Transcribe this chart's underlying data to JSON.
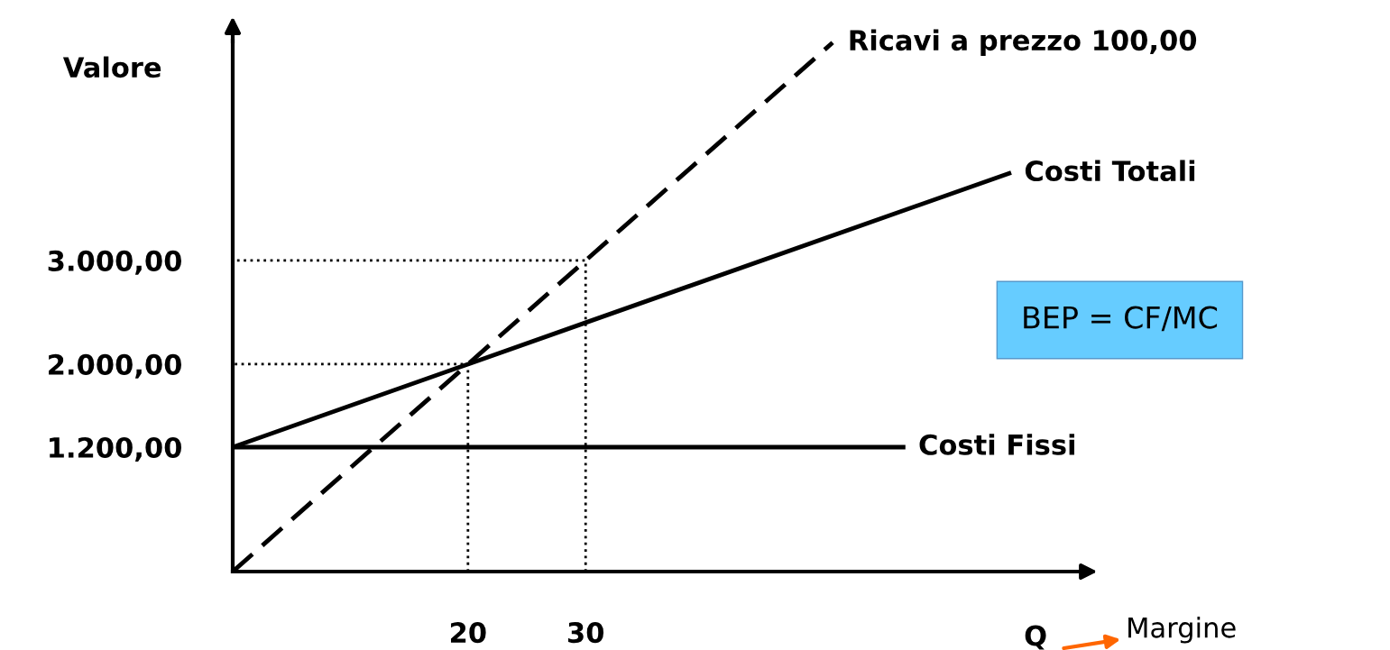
{
  "chart_data": {
    "type": "line",
    "xlabel": "Q",
    "ylabel": "Valore",
    "xlim": [
      0,
      73
    ],
    "ylim": [
      0,
      5120
    ],
    "xticks": [
      20,
      30
    ],
    "yticks": [
      {
        "value": 1200,
        "label": "1.200,00"
      },
      {
        "value": 2000,
        "label": "2.000,00"
      },
      {
        "value": 3000,
        "label": "3.000,00"
      }
    ],
    "grid": false,
    "series": [
      {
        "name": "Ricavi a prezzo 100,00",
        "color": "#000000",
        "line_style": "dashed",
        "x": [
          0,
          20,
          30,
          51
        ],
        "values": [
          0,
          2000,
          3000,
          5100
        ]
      },
      {
        "name": "Costi Totali",
        "color": "#000000",
        "line_style": "solid",
        "x": [
          0,
          20,
          30,
          66
        ],
        "values": [
          1200,
          2000,
          2400,
          3840
        ]
      },
      {
        "name": "Costi Fissi",
        "color": "#000000",
        "line_style": "solid",
        "x": [
          0,
          57
        ],
        "values": [
          1200,
          1200
        ]
      },
      {
        "color": "#000000",
        "line_style": "dotted",
        "x": [
          20,
          20,
          0
        ],
        "values": [
          0,
          2000,
          2000
        ]
      },
      {
        "color": "#000000",
        "line_style": "dotted",
        "x": [
          30,
          30,
          0
        ],
        "values": [
          0,
          3000,
          3000
        ]
      }
    ],
    "annotations": [
      "BEP = CF/MC",
      "Margine"
    ]
  }
}
